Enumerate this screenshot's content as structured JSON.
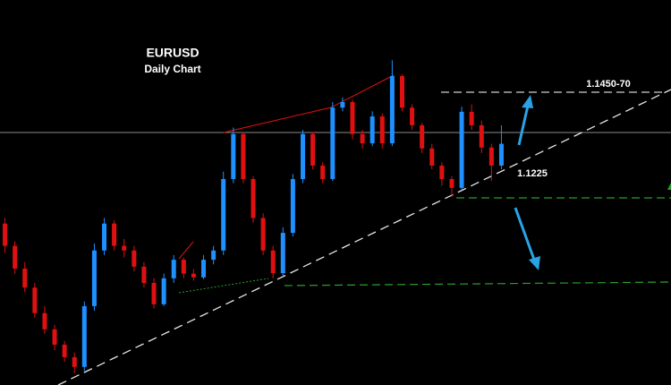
{
  "chart_data": {
    "type": "candlestick",
    "title": "EURUSD",
    "subtitle": "Daily Chart",
    "annotations": [
      "1.1450-70",
      "1.1225"
    ],
    "ylim": [
      1.082,
      1.165
    ],
    "up_color": "#1e90ff",
    "down_color": "#e01010",
    "open": [
      1.1168,
      1.112,
      1.1071,
      1.103,
      1.0975,
      1.094,
      1.0907,
      1.088,
      1.0859,
      1.099,
      1.111,
      1.1168,
      1.112,
      1.111,
      1.1075,
      1.104,
      1.0994,
      1.105,
      1.109,
      1.106,
      1.1052,
      1.109,
      1.111,
      1.1264,
      1.1361,
      1.1264,
      1.118,
      1.111,
      1.1061,
      1.1148,
      1.1264,
      1.1361,
      1.1293,
      1.1264,
      1.1418,
      1.143,
      1.1361,
      1.1341,
      1.1399,
      1.1341,
      1.1486,
      1.1418,
      1.138,
      1.133,
      1.1293,
      1.1264,
      1.1245,
      1.1409,
      1.138,
      1.1332,
      1.1293
    ],
    "high": [
      1.118,
      1.113,
      1.1085,
      1.104,
      1.099,
      1.095,
      1.0915,
      1.089,
      1.1,
      1.1125,
      1.118,
      1.1175,
      1.1135,
      1.112,
      1.1085,
      1.105,
      1.106,
      1.11,
      1.1095,
      1.107,
      1.11,
      1.112,
      1.128,
      1.1375,
      1.1365,
      1.127,
      1.119,
      1.112,
      1.116,
      1.1275,
      1.137,
      1.1365,
      1.13,
      1.143,
      1.144,
      1.1435,
      1.137,
      1.141,
      1.1405,
      1.152,
      1.149,
      1.1425,
      1.1385,
      1.134,
      1.13,
      1.127,
      1.142,
      1.1425,
      1.139,
      1.134,
      1.138
    ],
    "low": [
      1.1105,
      1.106,
      1.102,
      1.0965,
      1.093,
      1.0895,
      1.087,
      1.0845,
      1.085,
      1.098,
      1.11,
      1.111,
      1.1095,
      1.1065,
      1.103,
      1.0985,
      1.099,
      1.104,
      1.105,
      1.1045,
      1.1048,
      1.108,
      1.11,
      1.1255,
      1.1255,
      1.117,
      1.11,
      1.105,
      1.1055,
      1.114,
      1.1255,
      1.1285,
      1.1255,
      1.126,
      1.141,
      1.135,
      1.133,
      1.1335,
      1.133,
      1.1335,
      1.141,
      1.137,
      1.132,
      1.1285,
      1.125,
      1.1225,
      1.124,
      1.137,
      1.132,
      1.126,
      1.1285
    ],
    "close": [
      1.112,
      1.1071,
      1.103,
      1.0975,
      1.094,
      1.0907,
      1.088,
      1.0859,
      1.099,
      1.111,
      1.1168,
      1.112,
      1.111,
      1.1075,
      1.104,
      1.0994,
      1.105,
      1.109,
      1.106,
      1.1052,
      1.109,
      1.111,
      1.1264,
      1.1361,
      1.1264,
      1.118,
      1.111,
      1.1061,
      1.1148,
      1.1264,
      1.1361,
      1.1293,
      1.1264,
      1.1418,
      1.143,
      1.1361,
      1.1341,
      1.1399,
      1.1341,
      1.1486,
      1.1418,
      1.138,
      1.133,
      1.1293,
      1.1264,
      1.1245,
      1.1409,
      1.138,
      1.1332,
      1.1293,
      1.134
    ]
  }
}
